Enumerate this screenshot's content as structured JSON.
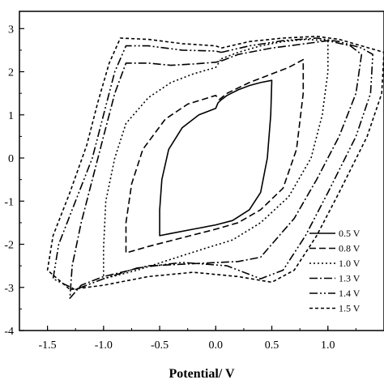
{
  "chart_data": {
    "type": "line",
    "title": "",
    "xlabel": "Potential/ V",
    "ylabel": "",
    "xlim": [
      -1.75,
      1.5
    ],
    "ylim": [
      -4,
      3.4
    ],
    "xticks": [
      -1.5,
      -1.0,
      -0.5,
      0.0,
      0.5,
      1.0
    ],
    "xtick_labels": [
      "-1.5",
      "-1.0",
      "-0.5",
      "0.0",
      "0.5",
      "1.0"
    ],
    "yticks": [
      -4,
      -3,
      -2,
      -1,
      0,
      1,
      2,
      3
    ],
    "ytick_labels": [
      "-4",
      "-3",
      "-2",
      "-1",
      "0",
      "1",
      "2",
      "3"
    ],
    "grid": false,
    "legend_position": "bottom-right",
    "series": [
      {
        "name": "0.5 V",
        "dash": "solid",
        "points": [
          [
            0.02,
            1.28
          ],
          [
            0.05,
            1.35
          ],
          [
            0.1,
            1.45
          ],
          [
            0.2,
            1.58
          ],
          [
            0.3,
            1.68
          ],
          [
            0.4,
            1.75
          ],
          [
            0.5,
            1.8
          ],
          [
            0.49,
            1.0
          ],
          [
            0.46,
            0.0
          ],
          [
            0.4,
            -0.8
          ],
          [
            0.3,
            -1.2
          ],
          [
            0.15,
            -1.45
          ],
          [
            0.0,
            -1.55
          ],
          [
            -0.2,
            -1.65
          ],
          [
            -0.4,
            -1.75
          ],
          [
            -0.5,
            -1.8
          ],
          [
            -0.5,
            -1.2
          ],
          [
            -0.48,
            -0.5
          ],
          [
            -0.42,
            0.2
          ],
          [
            -0.3,
            0.7
          ],
          [
            -0.15,
            1.0
          ],
          [
            0.0,
            1.15
          ],
          [
            0.02,
            1.28
          ]
        ]
      },
      {
        "name": "0.8 V",
        "dash": "8,4",
        "points": [
          [
            0.03,
            1.35
          ],
          [
            0.1,
            1.5
          ],
          [
            0.3,
            1.75
          ],
          [
            0.5,
            1.95
          ],
          [
            0.65,
            2.1
          ],
          [
            0.78,
            2.28
          ],
          [
            0.78,
            1.5
          ],
          [
            0.72,
            0.2
          ],
          [
            0.6,
            -0.7
          ],
          [
            0.4,
            -1.2
          ],
          [
            0.2,
            -1.5
          ],
          [
            0.0,
            -1.65
          ],
          [
            -0.3,
            -1.85
          ],
          [
            -0.6,
            -2.05
          ],
          [
            -0.8,
            -2.2
          ],
          [
            -0.8,
            -1.5
          ],
          [
            -0.75,
            -0.6
          ],
          [
            -0.65,
            0.2
          ],
          [
            -0.45,
            0.9
          ],
          [
            -0.25,
            1.25
          ],
          [
            0.0,
            1.45
          ],
          [
            0.03,
            1.35
          ]
        ]
      },
      {
        "name": "1.0 V",
        "dash": "2,3",
        "points": [
          [
            0.05,
            2.3
          ],
          [
            0.2,
            2.45
          ],
          [
            0.4,
            2.6
          ],
          [
            0.6,
            2.7
          ],
          [
            0.8,
            2.75
          ],
          [
            1.0,
            2.72
          ],
          [
            1.0,
            2.0
          ],
          [
            0.95,
            1.0
          ],
          [
            0.85,
            0.0
          ],
          [
            0.65,
            -0.9
          ],
          [
            0.4,
            -1.5
          ],
          [
            0.15,
            -1.9
          ],
          [
            -0.1,
            -2.1
          ],
          [
            -0.4,
            -2.35
          ],
          [
            -0.7,
            -2.6
          ],
          [
            -1.0,
            -2.8
          ],
          [
            -1.0,
            -2.1
          ],
          [
            -0.98,
            -1.0
          ],
          [
            -0.9,
            0.0
          ],
          [
            -0.8,
            0.8
          ],
          [
            -0.6,
            1.4
          ],
          [
            -0.4,
            1.75
          ],
          [
            -0.2,
            1.95
          ],
          [
            0.0,
            2.1
          ],
          [
            0.05,
            2.3
          ]
        ]
      },
      {
        "name": "1.3 V",
        "dash": "10,3,2,3",
        "points": [
          [
            0.05,
            2.25
          ],
          [
            0.2,
            2.4
          ],
          [
            0.5,
            2.55
          ],
          [
            0.8,
            2.65
          ],
          [
            1.0,
            2.72
          ],
          [
            1.2,
            2.6
          ],
          [
            1.3,
            2.4
          ],
          [
            1.25,
            1.5
          ],
          [
            1.1,
            0.5
          ],
          [
            0.9,
            -0.5
          ],
          [
            0.7,
            -1.4
          ],
          [
            0.5,
            -2.0
          ],
          [
            0.4,
            -2.3
          ],
          [
            0.2,
            -2.4
          ],
          [
            -0.2,
            -2.45
          ],
          [
            -0.6,
            -2.5
          ],
          [
            -1.0,
            -2.75
          ],
          [
            -1.2,
            -2.95
          ],
          [
            -1.3,
            -3.25
          ],
          [
            -1.28,
            -2.5
          ],
          [
            -1.2,
            -1.5
          ],
          [
            -1.1,
            -0.5
          ],
          [
            -1.0,
            0.5
          ],
          [
            -0.9,
            1.5
          ],
          [
            -0.8,
            2.2
          ],
          [
            -0.6,
            2.2
          ],
          [
            -0.4,
            2.15
          ],
          [
            -0.2,
            2.18
          ],
          [
            0.0,
            2.22
          ],
          [
            0.05,
            2.25
          ]
        ]
      },
      {
        "name": "1.4 V",
        "dash": "10,3,2,3,2,3",
        "points": [
          [
            0.05,
            2.45
          ],
          [
            0.3,
            2.6
          ],
          [
            0.6,
            2.72
          ],
          [
            0.9,
            2.78
          ],
          [
            1.1,
            2.7
          ],
          [
            1.3,
            2.55
          ],
          [
            1.4,
            2.4
          ],
          [
            1.38,
            1.5
          ],
          [
            1.25,
            0.5
          ],
          [
            1.0,
            -0.8
          ],
          [
            0.8,
            -1.8
          ],
          [
            0.6,
            -2.6
          ],
          [
            0.4,
            -2.8
          ],
          [
            0.1,
            -2.5
          ],
          [
            -0.3,
            -2.42
          ],
          [
            -0.7,
            -2.55
          ],
          [
            -1.0,
            -2.8
          ],
          [
            -1.25,
            -3.05
          ],
          [
            -1.45,
            -2.8
          ],
          [
            -1.4,
            -2.0
          ],
          [
            -1.25,
            -1.0
          ],
          [
            -1.1,
            0.0
          ],
          [
            -1.0,
            1.0
          ],
          [
            -0.9,
            2.0
          ],
          [
            -0.8,
            2.6
          ],
          [
            -0.6,
            2.6
          ],
          [
            -0.3,
            2.5
          ],
          [
            0.0,
            2.48
          ],
          [
            0.05,
            2.45
          ]
        ]
      },
      {
        "name": "1.5 V",
        "dash": "4,3",
        "points": [
          [
            0.05,
            2.55
          ],
          [
            0.3,
            2.7
          ],
          [
            0.6,
            2.78
          ],
          [
            0.9,
            2.82
          ],
          [
            1.1,
            2.75
          ],
          [
            1.3,
            2.6
          ],
          [
            1.5,
            2.45
          ],
          [
            1.48,
            1.5
          ],
          [
            1.35,
            0.5
          ],
          [
            1.1,
            -0.8
          ],
          [
            0.9,
            -1.8
          ],
          [
            0.7,
            -2.6
          ],
          [
            0.5,
            -2.88
          ],
          [
            0.2,
            -2.75
          ],
          [
            -0.2,
            -2.65
          ],
          [
            -0.6,
            -2.75
          ],
          [
            -1.0,
            -2.95
          ],
          [
            -1.3,
            -3.05
          ],
          [
            -1.5,
            -2.6
          ],
          [
            -1.45,
            -1.8
          ],
          [
            -1.3,
            -0.8
          ],
          [
            -1.15,
            0.3
          ],
          [
            -1.05,
            1.3
          ],
          [
            -0.95,
            2.2
          ],
          [
            -0.85,
            2.78
          ],
          [
            -0.6,
            2.75
          ],
          [
            -0.3,
            2.65
          ],
          [
            0.0,
            2.6
          ],
          [
            0.05,
            2.55
          ]
        ]
      }
    ]
  }
}
